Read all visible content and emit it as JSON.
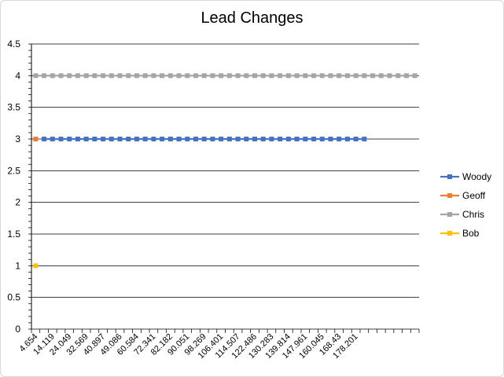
{
  "chart_data": {
    "type": "line",
    "title": "Lead Changes",
    "xlabel": "",
    "ylabel": "",
    "ylim": [
      0,
      4.5
    ],
    "yticks": [
      "0",
      "0.5",
      "1",
      "1.5",
      "2",
      "2.5",
      "3",
      "3.5",
      "4",
      "4.5"
    ],
    "xtick_labels": [
      "4.654",
      "14.119",
      "24.049",
      "32.569",
      "40.897",
      "49.086",
      "60.584",
      "72.341",
      "82.182",
      "90.051",
      "98.269",
      "106.401",
      "114.507",
      "122.486",
      "130.283",
      "139.814",
      "147.961",
      "160.045",
      "168.43",
      "178.201"
    ],
    "category_count": 46,
    "grid": "horizontal",
    "legend_position": "right",
    "series": [
      {
        "name": "Woody",
        "color": "#4472C4",
        "first_index": 1,
        "last_index": 39,
        "value": 3
      },
      {
        "name": "Geoff",
        "color": "#ED7D31",
        "first_index": 0,
        "last_index": 0,
        "value": 3
      },
      {
        "name": "Chris",
        "color": "#A5A5A5",
        "first_index": 0,
        "last_index": 45,
        "value": 4
      },
      {
        "name": "Bob",
        "color": "#FFC000",
        "first_index": 0,
        "last_index": 0,
        "value": 1
      }
    ]
  }
}
